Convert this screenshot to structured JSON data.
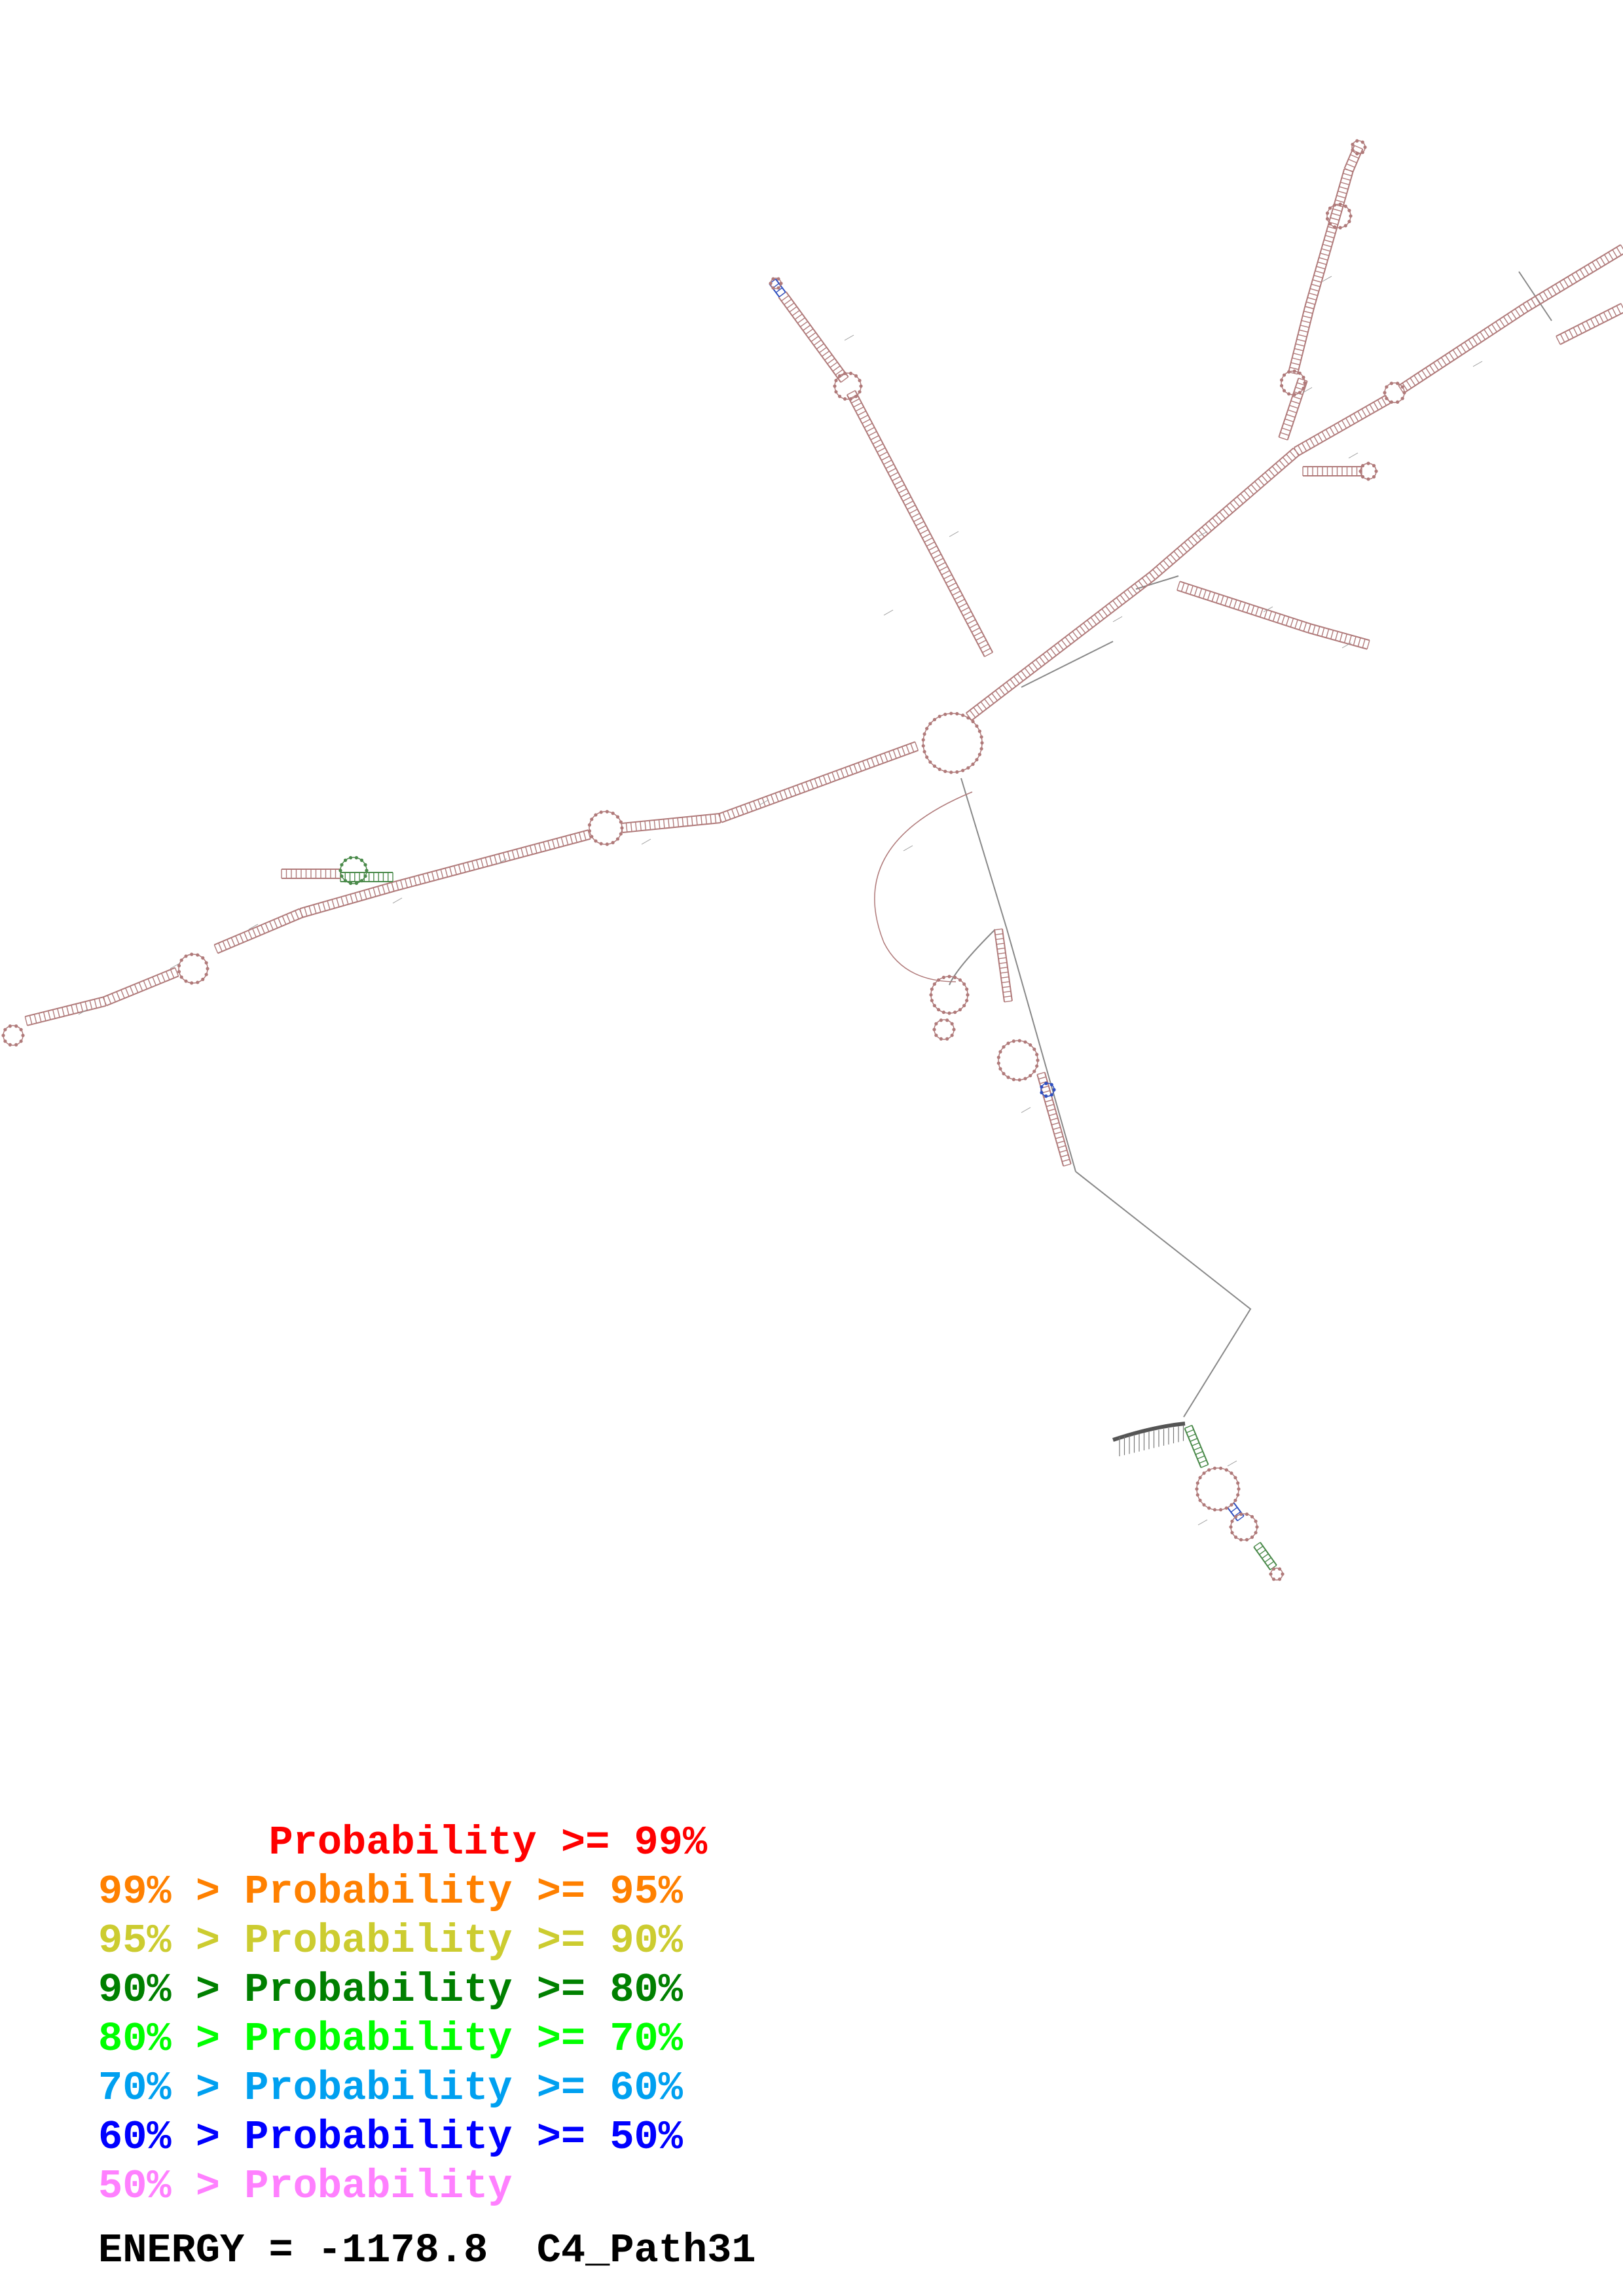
{
  "legend": [
    {
      "text": "       Probability >= 99%",
      "color": "#ff0000"
    },
    {
      "text": "99% > Probability >= 95%",
      "color": "#ff8000"
    },
    {
      "text": "95% > Probability >= 90%",
      "color": "#cccc30"
    },
    {
      "text": "90% > Probability >= 80%",
      "color": "#008000"
    },
    {
      "text": "80% > Probability >= 70%",
      "color": "#00ff00"
    },
    {
      "text": "70% > Probability >= 60%",
      "color": "#00a0f0"
    },
    {
      "text": "60% > Probability >= 50%",
      "color": "#0000ff"
    },
    {
      "text": "50% > Probability",
      "color": "#ff80ff"
    }
  ],
  "energy_label": "ENERGY = -1178.8  C4_Path31",
  "colors": {
    "stem": "#b07a7a",
    "backbone": "#888888",
    "green_stem": "#4a8a4a",
    "blue_stem": "#3050c0",
    "text": "#000000"
  }
}
